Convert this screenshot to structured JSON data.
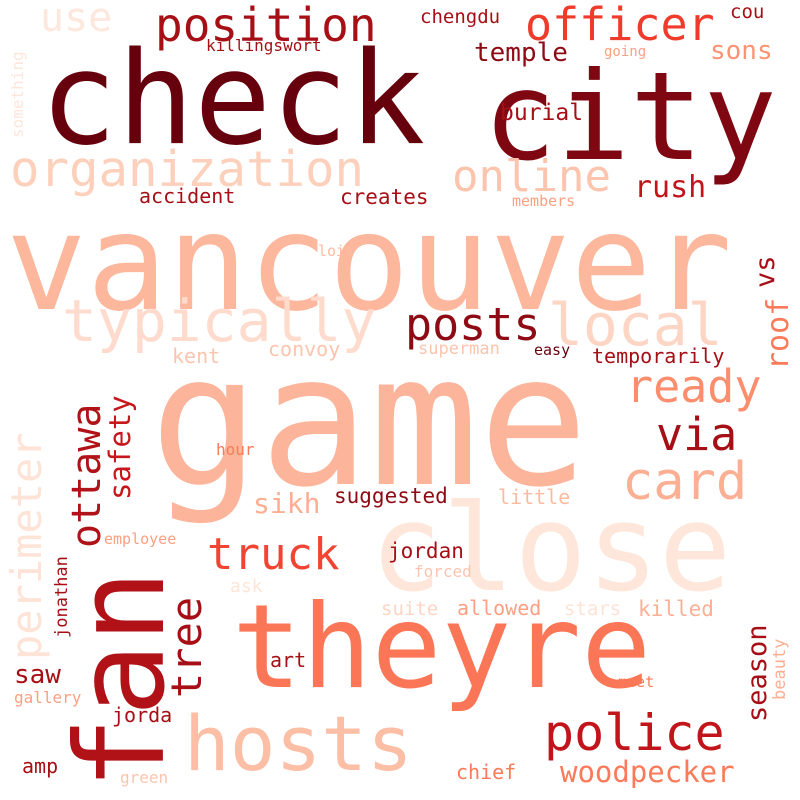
{
  "words": [
    {
      "text": "check",
      "color": "#67000d"
    },
    {
      "text": "city",
      "color": "#7f0712"
    },
    {
      "text": "vancouver",
      "color": "#fcb79c"
    },
    {
      "text": "game",
      "color": "#fcb49a"
    },
    {
      "text": "close",
      "color": "#fee6da"
    },
    {
      "text": "theyre",
      "color": "#fb7656"
    },
    {
      "text": "fan",
      "color": "#b11218"
    },
    {
      "text": "hosts",
      "color": "#fcbea5"
    },
    {
      "text": "position",
      "color": "#a50f15"
    },
    {
      "text": "officer",
      "color": "#ef3b2c"
    },
    {
      "text": "organization",
      "color": "#fdd0bc"
    },
    {
      "text": "typically",
      "color": "#fedbcc"
    },
    {
      "text": "local",
      "color": "#fdd5c4"
    },
    {
      "text": "online",
      "color": "#fcc4ad"
    },
    {
      "text": "posts",
      "color": "#8e0a14"
    },
    {
      "text": "ready",
      "color": "#fc8e6e"
    },
    {
      "text": "via",
      "color": "#a50f15"
    },
    {
      "text": "card",
      "color": "#fcaf93"
    },
    {
      "text": "truck",
      "color": "#f14432"
    },
    {
      "text": "police",
      "color": "#c2151b"
    },
    {
      "text": "woodpecker",
      "color": "#fb7a5a"
    },
    {
      "text": "perimeter",
      "color": "#fee3d6"
    },
    {
      "text": "ottawa",
      "color": "#b11218"
    },
    {
      "text": "safety",
      "color": "#c7171c"
    },
    {
      "text": "tree",
      "color": "#a50f15"
    },
    {
      "text": "season",
      "color": "#a50f15"
    },
    {
      "text": "use",
      "color": "#fee7dc"
    },
    {
      "text": "cou",
      "color": "#a50f15"
    },
    {
      "text": "chengdu",
      "color": "#a50f15"
    },
    {
      "text": "killingswort",
      "color": "#a50f15"
    },
    {
      "text": "going",
      "color": "#fca082"
    },
    {
      "text": "temple",
      "color": "#8e0a14"
    },
    {
      "text": "sons",
      "color": "#fc9373"
    },
    {
      "text": "something",
      "color": "#fee6da"
    },
    {
      "text": "burial",
      "color": "#a50f15"
    },
    {
      "text": "rush",
      "color": "#c2151b"
    },
    {
      "text": "accident",
      "color": "#a50f15"
    },
    {
      "text": "creates",
      "color": "#a50f15"
    },
    {
      "text": "members",
      "color": "#fca082"
    },
    {
      "text": "lois",
      "color": "#fcbba1"
    },
    {
      "text": "vs",
      "color": "#a50f15"
    },
    {
      "text": "roof",
      "color": "#fb7a5a"
    },
    {
      "text": "kent",
      "color": "#fcc4ad"
    },
    {
      "text": "convoy",
      "color": "#fcc4ad"
    },
    {
      "text": "superman",
      "color": "#fcc4ad"
    },
    {
      "text": "easy",
      "color": "#67000d"
    },
    {
      "text": "temporarily",
      "color": "#a50f15"
    },
    {
      "text": "hour",
      "color": "#fb7a5a"
    },
    {
      "text": "sikh",
      "color": "#fcaf93"
    },
    {
      "text": "suggested",
      "color": "#8e0a14"
    },
    {
      "text": "little",
      "color": "#fcbba1"
    },
    {
      "text": "employee",
      "color": "#fca082"
    },
    {
      "text": "jonathan",
      "color": "#a50f15"
    },
    {
      "text": "jordan",
      "color": "#a50f15"
    },
    {
      "text": "ask",
      "color": "#fee5d8"
    },
    {
      "text": "forced",
      "color": "#fcc4ad"
    },
    {
      "text": "suite",
      "color": "#fdd5c4"
    },
    {
      "text": "allowed",
      "color": "#fca082"
    },
    {
      "text": "stars",
      "color": "#fee3d6"
    },
    {
      "text": "killed",
      "color": "#fcaf93"
    },
    {
      "text": "saw",
      "color": "#a50f15"
    },
    {
      "text": "art",
      "color": "#a50f15"
    },
    {
      "text": "gallery",
      "color": "#fca082"
    },
    {
      "text": "jorda",
      "color": "#a50f15"
    },
    {
      "text": "meet",
      "color": "#fb7a5a"
    },
    {
      "text": "beauty",
      "color": "#fcaf93"
    },
    {
      "text": "amp",
      "color": "#a50f15"
    },
    {
      "text": "green",
      "color": "#fcc4ad"
    },
    {
      "text": "chief",
      "color": "#fb7a5a"
    }
  ]
}
